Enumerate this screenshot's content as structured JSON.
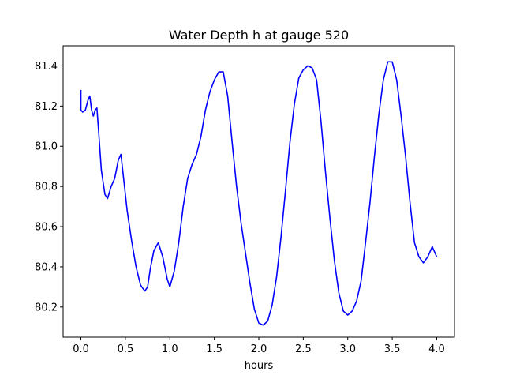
{
  "chart_data": {
    "type": "line",
    "title": "Water Depth h at gauge 520",
    "xlabel": "hours",
    "ylabel": "",
    "xlim": [
      -0.2,
      4.2
    ],
    "ylim": [
      80.05,
      81.5
    ],
    "xticks": [
      0.0,
      0.5,
      1.0,
      1.5,
      2.0,
      2.5,
      3.0,
      3.5,
      4.0
    ],
    "xtick_labels": [
      "0.0",
      "0.5",
      "1.0",
      "1.5",
      "2.0",
      "2.5",
      "3.0",
      "3.5",
      "4.0"
    ],
    "yticks": [
      80.2,
      80.4,
      80.6,
      80.8,
      81.0,
      81.2,
      81.4
    ],
    "ytick_labels": [
      "80.2",
      "80.4",
      "80.6",
      "80.8",
      "81.0",
      "81.2",
      "81.4"
    ],
    "grid": false,
    "series": [
      {
        "color": "#0000ff",
        "x": [
          0.0,
          0.0,
          0.02,
          0.05,
          0.08,
          0.1,
          0.12,
          0.14,
          0.16,
          0.18,
          0.2,
          0.23,
          0.27,
          0.3,
          0.34,
          0.38,
          0.42,
          0.45,
          0.48,
          0.52,
          0.57,
          0.62,
          0.67,
          0.7,
          0.72,
          0.75,
          0.78,
          0.82,
          0.87,
          0.92,
          0.97,
          1.0,
          1.05,
          1.1,
          1.15,
          1.2,
          1.25,
          1.3,
          1.35,
          1.4,
          1.45,
          1.5,
          1.55,
          1.6,
          1.65,
          1.7,
          1.75,
          1.8,
          1.85,
          1.9,
          1.95,
          2.0,
          2.05,
          2.1,
          2.15,
          2.2,
          2.25,
          2.3,
          2.35,
          2.4,
          2.45,
          2.5,
          2.55,
          2.6,
          2.65,
          2.7,
          2.75,
          2.8,
          2.85,
          2.9,
          2.95,
          3.0,
          3.05,
          3.1,
          3.15,
          3.2,
          3.25,
          3.3,
          3.35,
          3.4,
          3.45,
          3.5,
          3.55,
          3.6,
          3.65,
          3.7,
          3.75,
          3.8,
          3.85,
          3.9,
          3.95,
          4.0
        ],
        "y": [
          81.28,
          81.18,
          81.17,
          81.18,
          81.23,
          81.25,
          81.18,
          81.15,
          81.18,
          81.19,
          81.07,
          80.88,
          80.76,
          80.74,
          80.8,
          80.84,
          80.93,
          80.96,
          80.84,
          80.68,
          80.53,
          80.4,
          80.31,
          80.29,
          80.28,
          80.3,
          80.39,
          80.48,
          80.52,
          80.45,
          80.34,
          80.3,
          80.38,
          80.52,
          80.7,
          80.84,
          80.91,
          80.96,
          81.05,
          81.18,
          81.27,
          81.33,
          81.37,
          81.37,
          81.25,
          81.02,
          80.8,
          80.62,
          80.47,
          80.32,
          80.19,
          80.12,
          80.11,
          80.13,
          80.21,
          80.35,
          80.55,
          80.78,
          81.02,
          81.21,
          81.34,
          81.38,
          81.4,
          81.39,
          81.33,
          81.12,
          80.87,
          80.64,
          80.43,
          80.27,
          80.18,
          80.16,
          80.18,
          80.23,
          80.33,
          80.52,
          80.72,
          80.95,
          81.16,
          81.33,
          81.42,
          81.42,
          81.33,
          81.15,
          80.95,
          80.72,
          80.52,
          80.45,
          80.42,
          80.45,
          80.5,
          80.45
        ]
      }
    ]
  }
}
